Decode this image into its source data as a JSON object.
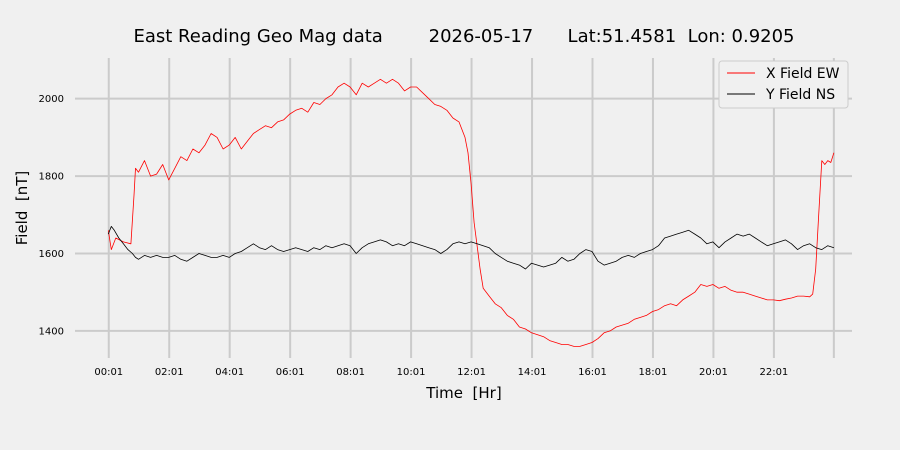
{
  "chart_data": {
    "type": "line",
    "title": "East Reading Geo Mag data        2026-05-17      Lat:51.4581  Lon: 0.9205",
    "xlabel": "Time  [Hr]",
    "ylabel": "Field  [nT]",
    "xlim": [
      -1.1,
      24.6
    ],
    "ylim": [
      1330,
      2105
    ],
    "x_tick_values": [
      0.0167,
      2.0167,
      4.0167,
      6.0167,
      8.0167,
      10.0167,
      12.0167,
      14.0167,
      16.0167,
      18.0167,
      20.0167,
      22.0167
    ],
    "x_tick_labels": [
      "00:01",
      "02:01",
      "04:01",
      "06:01",
      "08:01",
      "10:01",
      "12:01",
      "14:01",
      "16:01",
      "18:01",
      "20:01",
      "22:01"
    ],
    "x_grid_values": [
      0.0167,
      2.0167,
      4.0167,
      6.0167,
      8.0167,
      10.0167,
      12.0167,
      14.0167,
      16.0167,
      18.0167,
      20.0167,
      22.0167,
      24.0
    ],
    "y_ticks": [
      1400,
      1600,
      1800,
      2000
    ],
    "grid": true,
    "legend_position": "top-right",
    "series": [
      {
        "name": "X Field EW",
        "color": "#ff0000",
        "x": [
          0.0,
          0.1,
          0.25,
          0.5,
          0.75,
          0.85,
          0.9,
          1.0,
          1.2,
          1.4,
          1.6,
          1.8,
          2.0,
          2.2,
          2.4,
          2.6,
          2.8,
          3.0,
          3.2,
          3.4,
          3.6,
          3.8,
          4.0,
          4.2,
          4.4,
          4.6,
          4.8,
          5.0,
          5.2,
          5.4,
          5.6,
          5.8,
          6.0,
          6.2,
          6.4,
          6.6,
          6.8,
          7.0,
          7.2,
          7.4,
          7.6,
          7.8,
          8.0,
          8.2,
          8.4,
          8.6,
          8.8,
          9.0,
          9.2,
          9.4,
          9.6,
          9.8,
          10.0,
          10.2,
          10.4,
          10.6,
          10.8,
          11.0,
          11.2,
          11.4,
          11.6,
          11.8,
          11.9,
          12.0,
          12.1,
          12.2,
          12.3,
          12.4,
          12.6,
          12.8,
          13.0,
          13.2,
          13.4,
          13.6,
          13.8,
          14.0,
          14.2,
          14.4,
          14.6,
          14.8,
          15.0,
          15.2,
          15.4,
          15.6,
          15.8,
          16.0,
          16.2,
          16.4,
          16.6,
          16.8,
          17.0,
          17.2,
          17.4,
          17.6,
          17.8,
          18.0,
          18.2,
          18.4,
          18.6,
          18.8,
          19.0,
          19.2,
          19.4,
          19.6,
          19.8,
          20.0,
          20.2,
          20.4,
          20.6,
          20.8,
          21.0,
          21.2,
          21.4,
          21.6,
          21.8,
          22.0,
          22.2,
          22.4,
          22.6,
          22.8,
          23.0,
          23.2,
          23.3,
          23.4,
          23.5,
          23.6,
          23.7,
          23.8,
          23.9,
          24.0
        ],
        "values": [
          1660,
          1610,
          1640,
          1630,
          1625,
          1750,
          1820,
          1810,
          1840,
          1800,
          1805,
          1830,
          1790,
          1820,
          1850,
          1840,
          1870,
          1860,
          1880,
          1910,
          1900,
          1870,
          1880,
          1900,
          1870,
          1890,
          1910,
          1920,
          1930,
          1925,
          1940,
          1945,
          1960,
          1970,
          1975,
          1965,
          1990,
          1985,
          2000,
          2010,
          2030,
          2040,
          2030,
          2010,
          2040,
          2030,
          2040,
          2050,
          2040,
          2050,
          2040,
          2020,
          2030,
          2030,
          2015,
          2000,
          1985,
          1980,
          1970,
          1950,
          1940,
          1900,
          1860,
          1780,
          1680,
          1620,
          1560,
          1510,
          1490,
          1470,
          1460,
          1440,
          1430,
          1410,
          1405,
          1395,
          1390,
          1385,
          1375,
          1370,
          1365,
          1365,
          1360,
          1360,
          1365,
          1370,
          1380,
          1395,
          1400,
          1410,
          1415,
          1420,
          1430,
          1435,
          1440,
          1450,
          1455,
          1465,
          1470,
          1465,
          1480,
          1490,
          1500,
          1520,
          1515,
          1520,
          1510,
          1515,
          1505,
          1500,
          1500,
          1495,
          1490,
          1485,
          1480,
          1480,
          1478,
          1482,
          1485,
          1490,
          1490,
          1488,
          1495,
          1560,
          1700,
          1840,
          1830,
          1840,
          1835,
          1860
        ]
      },
      {
        "name": "Y Field NS",
        "color": "#000000",
        "x": [
          0.0,
          0.1,
          0.2,
          0.35,
          0.5,
          0.65,
          0.8,
          0.9,
          1.0,
          1.2,
          1.4,
          1.6,
          1.8,
          2.0,
          2.2,
          2.4,
          2.6,
          2.8,
          3.0,
          3.2,
          3.4,
          3.6,
          3.8,
          4.0,
          4.2,
          4.4,
          4.6,
          4.8,
          5.0,
          5.2,
          5.4,
          5.6,
          5.8,
          6.0,
          6.2,
          6.4,
          6.6,
          6.8,
          7.0,
          7.2,
          7.4,
          7.6,
          7.8,
          8.0,
          8.2,
          8.4,
          8.6,
          8.8,
          9.0,
          9.2,
          9.4,
          9.6,
          9.8,
          10.0,
          10.2,
          10.4,
          10.6,
          10.8,
          11.0,
          11.2,
          11.4,
          11.6,
          11.8,
          12.0,
          12.2,
          12.4,
          12.6,
          12.8,
          13.0,
          13.2,
          13.4,
          13.6,
          13.8,
          14.0,
          14.2,
          14.4,
          14.6,
          14.8,
          15.0,
          15.2,
          15.4,
          15.6,
          15.8,
          16.0,
          16.2,
          16.4,
          16.6,
          16.8,
          17.0,
          17.2,
          17.4,
          17.6,
          17.8,
          18.0,
          18.2,
          18.4,
          18.6,
          18.8,
          19.0,
          19.2,
          19.4,
          19.6,
          19.8,
          20.0,
          20.2,
          20.4,
          20.6,
          20.8,
          21.0,
          21.2,
          21.4,
          21.6,
          21.8,
          22.0,
          22.2,
          22.4,
          22.6,
          22.8,
          23.0,
          23.2,
          23.4,
          23.6,
          23.8,
          24.0
        ],
        "values": [
          1650,
          1670,
          1660,
          1640,
          1625,
          1610,
          1600,
          1590,
          1585,
          1595,
          1590,
          1595,
          1590,
          1590,
          1595,
          1585,
          1580,
          1590,
          1600,
          1595,
          1590,
          1590,
          1595,
          1590,
          1600,
          1605,
          1615,
          1625,
          1615,
          1610,
          1620,
          1610,
          1605,
          1610,
          1615,
          1610,
          1605,
          1615,
          1610,
          1620,
          1615,
          1620,
          1625,
          1620,
          1600,
          1615,
          1625,
          1630,
          1635,
          1630,
          1620,
          1625,
          1620,
          1630,
          1625,
          1620,
          1615,
          1610,
          1600,
          1610,
          1625,
          1630,
          1625,
          1630,
          1625,
          1620,
          1615,
          1600,
          1590,
          1580,
          1575,
          1570,
          1560,
          1575,
          1570,
          1565,
          1570,
          1575,
          1590,
          1580,
          1585,
          1600,
          1610,
          1605,
          1580,
          1570,
          1575,
          1580,
          1590,
          1595,
          1590,
          1600,
          1605,
          1610,
          1620,
          1640,
          1645,
          1650,
          1655,
          1660,
          1650,
          1640,
          1625,
          1630,
          1615,
          1630,
          1640,
          1650,
          1645,
          1650,
          1640,
          1630,
          1620,
          1625,
          1630,
          1635,
          1625,
          1610,
          1620,
          1625,
          1615,
          1610,
          1620,
          1615
        ]
      }
    ]
  }
}
